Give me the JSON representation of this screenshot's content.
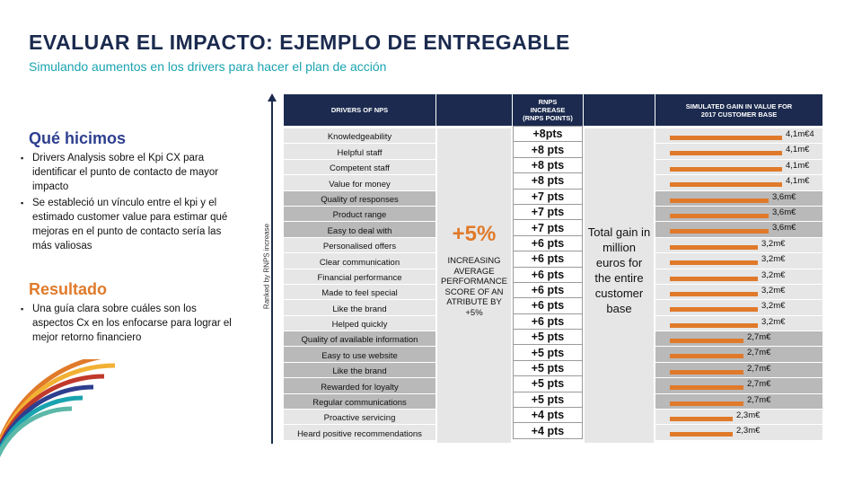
{
  "header": {
    "title": "EVALUAR EL IMPACTO: EJEMPLO DE ENTREGABLE",
    "subtitle": "Simulando aumentos en los drivers para hacer el plan de acción"
  },
  "que_hicimos": {
    "heading": "Qué hicimos",
    "bullets": [
      "Drivers Analysis sobre  el Kpi CX para identificar el punto de contacto de mayor impacto",
      "Se estableció un vínculo entre el kpi y el estimado customer value para estimar qué mejoras en el punto de contacto sería las más valiosas"
    ]
  },
  "resultado": {
    "heading": "Resultado",
    "bullets": [
      "Una guía clara sobre cuáles son los aspectos Cx en los enfocarse para lograr el mejor retorno financiero"
    ]
  },
  "axis_label": "Ranked by RNPS increase",
  "table": {
    "headers": {
      "drivers": "DRIVERS OF NPS",
      "rnps_line1": "RNPS",
      "rnps_line2": "INCREASE",
      "rnps_line3": "(RNPS POINTS)",
      "gain_line1": "SIMULATED GAIN IN VALUE FOR",
      "gain_line2": "2017 CUSTOMER BASE"
    },
    "increase_big": "+5%",
    "increase_text": "INCREASING AVERAGE PERFORMANCE SCORE OF AN ATRIBUTE BY +5%",
    "total_gain_text": "Total gain in million euros for the entire customer base",
    "rows": [
      {
        "driver": "Knowledgeability",
        "pts": "+8pts",
        "gain": "4,1m€4",
        "value": 4.1,
        "shade": "g"
      },
      {
        "driver": "Helpful staff",
        "pts": "+8 pts",
        "gain": "4,1m€",
        "value": 4.1,
        "shade": "g"
      },
      {
        "driver": "Competent staff",
        "pts": "+8 pts",
        "gain": "4,1m€",
        "value": 4.1,
        "shade": "g"
      },
      {
        "driver": "Value for money",
        "pts": "+8 pts",
        "gain": "4,1m€",
        "value": 4.1,
        "shade": "g"
      },
      {
        "driver": "Quality of responses",
        "pts": "+7 pts",
        "gain": "3,6m€",
        "value": 3.6,
        "shade": "d"
      },
      {
        "driver": "Product range",
        "pts": "+7 pts",
        "gain": "3,6m€",
        "value": 3.6,
        "shade": "d"
      },
      {
        "driver": "Easy to deal with",
        "pts": "+7 pts",
        "gain": "3,6m€",
        "value": 3.6,
        "shade": "d"
      },
      {
        "driver": "Personalised offers",
        "pts": "+6 pts",
        "gain": "3,2m€",
        "value": 3.2,
        "shade": "g"
      },
      {
        "driver": "Clear communication",
        "pts": "+6 pts",
        "gain": "3,2m€",
        "value": 3.2,
        "shade": "g"
      },
      {
        "driver": "Financial performance",
        "pts": "+6 pts",
        "gain": "3,2m€",
        "value": 3.2,
        "shade": "g"
      },
      {
        "driver": "Made to feel special",
        "pts": "+6 pts",
        "gain": "3,2m€",
        "value": 3.2,
        "shade": "g"
      },
      {
        "driver": "Like the brand",
        "pts": "+6 pts",
        "gain": "3,2m€",
        "value": 3.2,
        "shade": "g"
      },
      {
        "driver": "Helped quickly",
        "pts": "+6 pts",
        "gain": "3,2m€",
        "value": 3.2,
        "shade": "g"
      },
      {
        "driver": "Quality of available information",
        "pts": "+5 pts",
        "gain": "2,7m€",
        "value": 2.7,
        "shade": "d"
      },
      {
        "driver": "Easy to use website",
        "pts": "+5 pts",
        "gain": "2,7m€",
        "value": 2.7,
        "shade": "d"
      },
      {
        "driver": "Like the brand",
        "pts": "+5 pts",
        "gain": "2,7m€",
        "value": 2.7,
        "shade": "d"
      },
      {
        "driver": "Rewarded for loyalty",
        "pts": "+5 pts",
        "gain": "2,7m€",
        "value": 2.7,
        "shade": "d"
      },
      {
        "driver": "Regular communications",
        "pts": "+5 pts",
        "gain": "2,7m€",
        "value": 2.7,
        "shade": "d"
      },
      {
        "driver": "Proactive servicing",
        "pts": "+4 pts",
        "gain": "2,3m€",
        "value": 2.3,
        "shade": "g"
      },
      {
        "driver": "Heard positive recommendations",
        "pts": "+4 pts",
        "gain": "2,3m€",
        "value": 2.3,
        "shade": "g"
      }
    ]
  },
  "colors": {
    "navy": "#1b2a4e",
    "teal": "#1aa3b0",
    "orange": "#e07a2a",
    "blue": "#2e3f8f"
  }
}
